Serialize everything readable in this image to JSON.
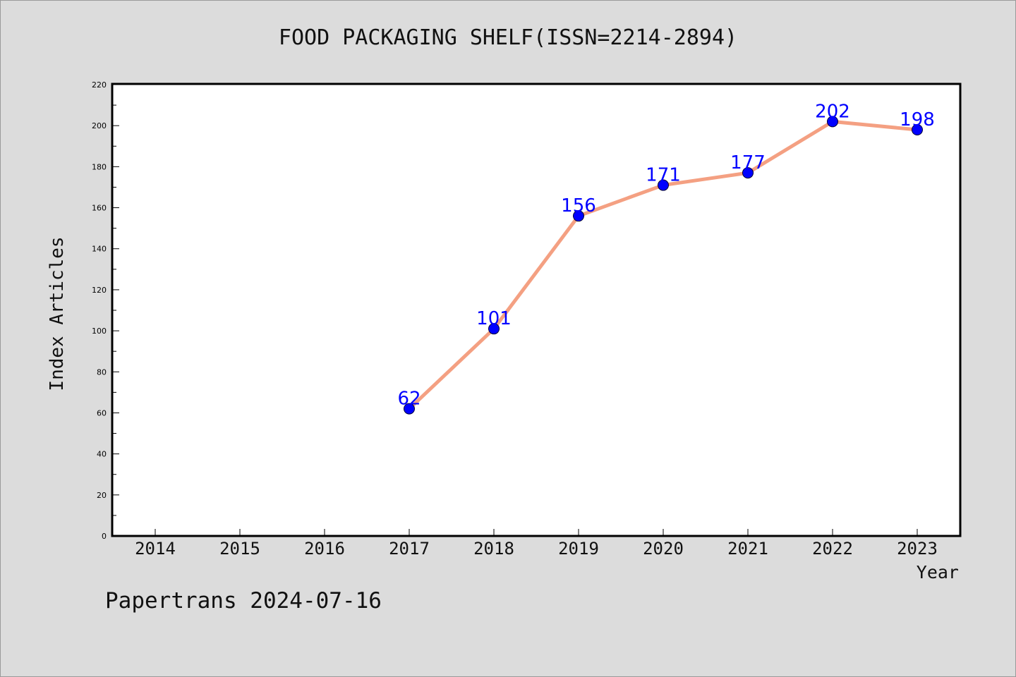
{
  "chart_data": {
    "type": "line",
    "title": "FOOD PACKAGING SHELF(ISSN=2214-2894)",
    "xlabel": "Year",
    "ylabel": "Index Articles",
    "categories": [
      "2014",
      "2015",
      "2016",
      "2017",
      "2018",
      "2019",
      "2020",
      "2021",
      "2022",
      "2023"
    ],
    "series": [
      {
        "x": [
          "2017",
          "2018",
          "2019",
          "2020",
          "2021",
          "2022",
          "2023"
        ],
        "values": [
          62,
          101,
          156,
          171,
          177,
          202,
          198
        ],
        "color": "#f4a082",
        "marker_color": "#0000ff",
        "label_color": "#0000ff"
      }
    ],
    "ylim": [
      0,
      220
    ],
    "yticks": [
      0,
      20,
      40,
      60,
      80,
      100,
      120,
      140,
      160,
      180,
      200,
      220
    ],
    "grid": false,
    "legend": "none"
  },
  "footer": {
    "text": "Papertrans 2024-07-16"
  },
  "colors": {
    "background": "#dcdcdc",
    "plot_background": "#ffffff",
    "line": "#f4a082",
    "marker": "#0000ff",
    "data_label": "#0000ff"
  }
}
